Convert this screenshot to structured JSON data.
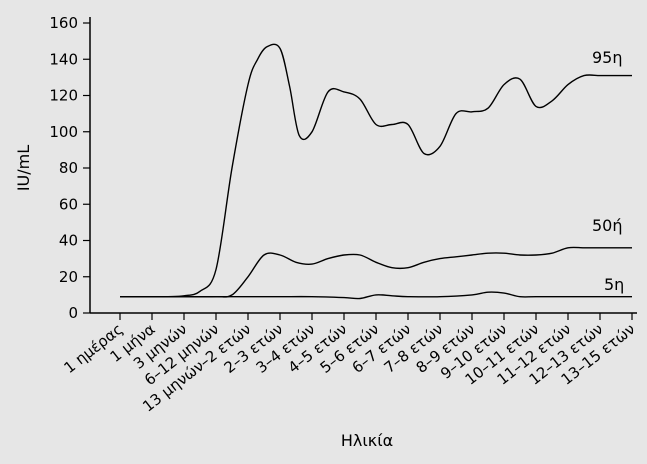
{
  "chart_data": {
    "type": "line",
    "xlabel": "Ηλικία",
    "ylabel": "IU/mL",
    "ylim": [
      0,
      160
    ],
    "yticks": [
      0,
      20,
      40,
      60,
      80,
      100,
      120,
      140,
      160
    ],
    "categories": [
      "1 ημέρας",
      "1 μήνα",
      "3 μηνών",
      "6–12 μηνών",
      "13 μηνών–2 ετών",
      "2–3 ετών",
      "3–4 ετών",
      "4–5 ετών",
      "5–6 ετών",
      "6–7 ετών",
      "7–8 ετών",
      "8–9 ετών",
      "9–10 ετών",
      "10–11 ετών",
      "11–12 ετών",
      "12–13 ετών",
      "13–15 ετών"
    ],
    "series": [
      {
        "name": "95η",
        "x": [
          0,
          1,
          1.5,
          2,
          2.5,
          3,
          3.5,
          4,
          4.3,
          4.6,
          5,
          5.3,
          5.6,
          6,
          6.5,
          7,
          7.5,
          8,
          8.5,
          9,
          9.5,
          10,
          10.5,
          11,
          11.5,
          12,
          12.5,
          13,
          13.5,
          14,
          14.5,
          15,
          15.5,
          16
        ],
        "values": [
          9,
          9,
          9,
          9.5,
          12,
          24,
          80,
          126,
          140,
          147,
          146,
          125,
          98,
          100,
          122,
          122,
          118,
          104,
          104,
          104,
          88,
          92,
          110,
          111,
          113,
          126,
          129,
          114,
          117,
          126,
          131,
          131,
          131,
          131
        ]
      },
      {
        "name": "50ή",
        "x": [
          0,
          1,
          2,
          3,
          3.5,
          4,
          4.5,
          5,
          5.5,
          6,
          6.5,
          7,
          7.5,
          8,
          8.5,
          9,
          9.5,
          10,
          10.5,
          11,
          11.5,
          12,
          12.5,
          13,
          13.5,
          14,
          14.5,
          15,
          16
        ],
        "values": [
          9,
          9,
          9,
          9,
          10,
          20,
          32,
          32,
          28,
          27,
          30,
          32,
          32,
          28,
          25,
          25,
          28,
          30,
          31,
          32,
          33,
          33,
          32,
          32,
          33,
          36,
          36,
          36,
          36
        ]
      },
      {
        "name": "5η",
        "x": [
          0,
          1,
          2,
          3,
          4,
          5,
          6,
          7,
          7.5,
          8,
          8.5,
          9,
          10,
          11,
          11.5,
          12,
          12.5,
          13,
          14,
          15,
          16
        ],
        "values": [
          9,
          9,
          9,
          9,
          9,
          9,
          9,
          8.5,
          8,
          10,
          9.5,
          9,
          9,
          10,
          11.5,
          11,
          9,
          9,
          9,
          9,
          9
        ]
      }
    ]
  }
}
